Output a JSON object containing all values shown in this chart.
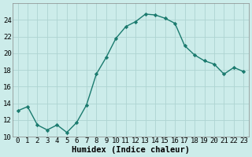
{
  "x": [
    0,
    1,
    2,
    3,
    4,
    5,
    6,
    7,
    8,
    9,
    10,
    11,
    12,
    13,
    14,
    15,
    16,
    17,
    18,
    19,
    20,
    21,
    22,
    23
  ],
  "y": [
    13.1,
    13.6,
    11.4,
    10.8,
    11.4,
    10.5,
    11.7,
    13.8,
    17.5,
    19.5,
    21.8,
    23.2,
    23.8,
    24.7,
    24.6,
    24.2,
    23.6,
    20.9,
    19.8,
    19.1,
    18.7,
    17.5,
    18.3,
    17.8
  ],
  "line_color": "#1a7a6e",
  "marker": "D",
  "marker_size": 2.2,
  "bg_color": "#ccecea",
  "grid_color": "#aed4d1",
  "xlabel": "Humidex (Indice chaleur)",
  "ylim": [
    10,
    26
  ],
  "xlim": [
    -0.5,
    23.5
  ],
  "yticks": [
    10,
    12,
    14,
    16,
    18,
    20,
    22,
    24
  ],
  "xtick_labels": [
    "0",
    "1",
    "2",
    "3",
    "4",
    "5",
    "6",
    "7",
    "8",
    "9",
    "10",
    "11",
    "12",
    "13",
    "14",
    "15",
    "16",
    "17",
    "18",
    "19",
    "20",
    "21",
    "22",
    "23"
  ],
  "tick_fontsize": 6.5,
  "xlabel_fontsize": 7.5,
  "line_width": 1.0
}
